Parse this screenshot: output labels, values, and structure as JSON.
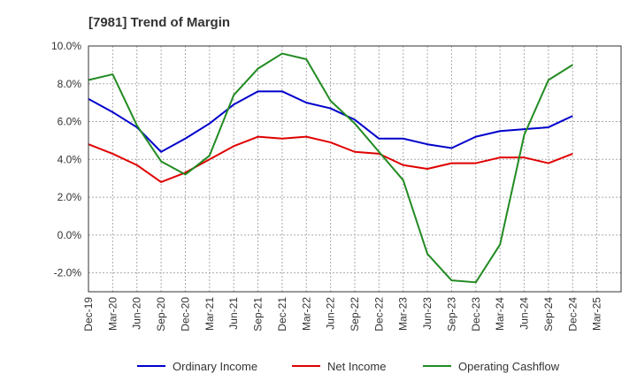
{
  "chart_data": {
    "type": "line",
    "title": "[7981]  Trend of Margin",
    "categories": [
      "Dec-19",
      "Mar-20",
      "Jun-20",
      "Sep-20",
      "Dec-20",
      "Mar-21",
      "Jun-21",
      "Sep-21",
      "Dec-21",
      "Mar-22",
      "Jun-22",
      "Sep-22",
      "Dec-22",
      "Mar-23",
      "Jun-23",
      "Sep-23",
      "Dec-23",
      "Mar-24",
      "Jun-24",
      "Sep-24",
      "Dec-24",
      "Mar-25"
    ],
    "y_ticks": [
      "10.0%",
      "8.0%",
      "6.0%",
      "4.0%",
      "2.0%",
      "0.0%",
      "-2.0%"
    ],
    "ylim": [
      -3,
      10
    ],
    "grid": true,
    "legend_position": "bottom",
    "series": [
      {
        "name": "Ordinary Income",
        "color": "#0000cc",
        "values": [
          7.2,
          6.5,
          5.7,
          4.4,
          5.1,
          5.9,
          6.9,
          7.6,
          7.6,
          7.0,
          6.7,
          6.1,
          5.1,
          5.1,
          4.8,
          4.6,
          5.2,
          5.5,
          5.6,
          5.7,
          6.3,
          null
        ]
      },
      {
        "name": "Net Income",
        "color": "#e00000",
        "values": [
          4.8,
          4.3,
          3.7,
          2.8,
          3.3,
          4.0,
          4.7,
          5.2,
          5.1,
          5.2,
          4.9,
          4.4,
          4.3,
          3.7,
          3.5,
          3.8,
          3.8,
          4.1,
          4.1,
          3.8,
          4.3,
          null
        ]
      },
      {
        "name": "Operating Cashflow",
        "color": "#228b22",
        "values": [
          8.2,
          8.5,
          5.8,
          3.9,
          3.2,
          4.2,
          7.4,
          8.8,
          9.6,
          9.3,
          7.1,
          5.9,
          4.4,
          2.9,
          -1.0,
          -2.4,
          -2.5,
          -0.5,
          5.3,
          8.2,
          9.0,
          null
        ]
      }
    ]
  }
}
